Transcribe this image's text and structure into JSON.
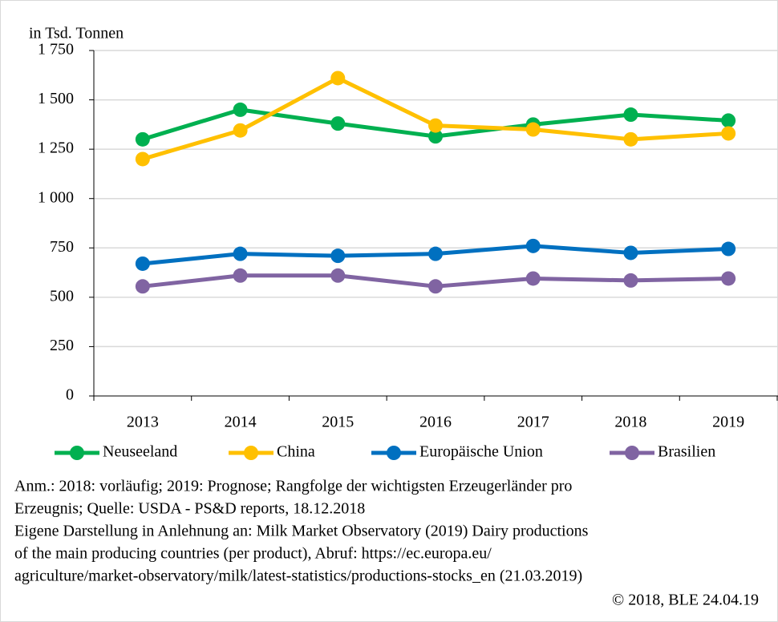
{
  "chart_data": {
    "type": "line",
    "ylabel": "in Tsd. Tonnen",
    "categories": [
      "2013",
      "2014",
      "2015",
      "2016",
      "2017",
      "2018",
      "2019"
    ],
    "series": [
      {
        "name": "Neuseeland",
        "color": "#00b050",
        "values": [
          1300,
          1450,
          1380,
          1315,
          1375,
          1425,
          1395
        ]
      },
      {
        "name": "China",
        "color": "#ffc000",
        "values": [
          1200,
          1345,
          1610,
          1370,
          1350,
          1300,
          1330
        ]
      },
      {
        "name": "Europäische Union",
        "color": "#0070c0",
        "values": [
          670,
          720,
          710,
          720,
          760,
          725,
          745
        ]
      },
      {
        "name": "Brasilien",
        "color": "#8064a2",
        "values": [
          555,
          610,
          610,
          555,
          595,
          585,
          595
        ]
      }
    ],
    "ylim": [
      0,
      1750
    ],
    "yticks": [
      0,
      250,
      500,
      750,
      {
        "value": 1000,
        "label": "1 000"
      },
      {
        "value": 1250,
        "label": "1 250"
      },
      {
        "value": 1500,
        "label": "1 500"
      },
      {
        "value": 1750,
        "label": "1 750"
      }
    ],
    "grid": true,
    "legend": "bottom",
    "notes": [
      "Anm.: 2018: vorläufig; 2019: Prognose; Rangfolge der wichtigsten Erzeugerländer pro",
      "Erzeugnis; Quelle: USDA - PS&D reports, 18.12.2018",
      "Eigene Darstellung in Anlehnung an: Milk Market Observatory (2019) Dairy productions",
      "of the main producing countries (per product), Abruf: https://ec.europa.eu/",
      "agriculture/market-observatory/milk/latest-statistics/productions-stocks_en (21.03.2019)"
    ],
    "credit": "© 2018, BLE 24.04.19"
  }
}
